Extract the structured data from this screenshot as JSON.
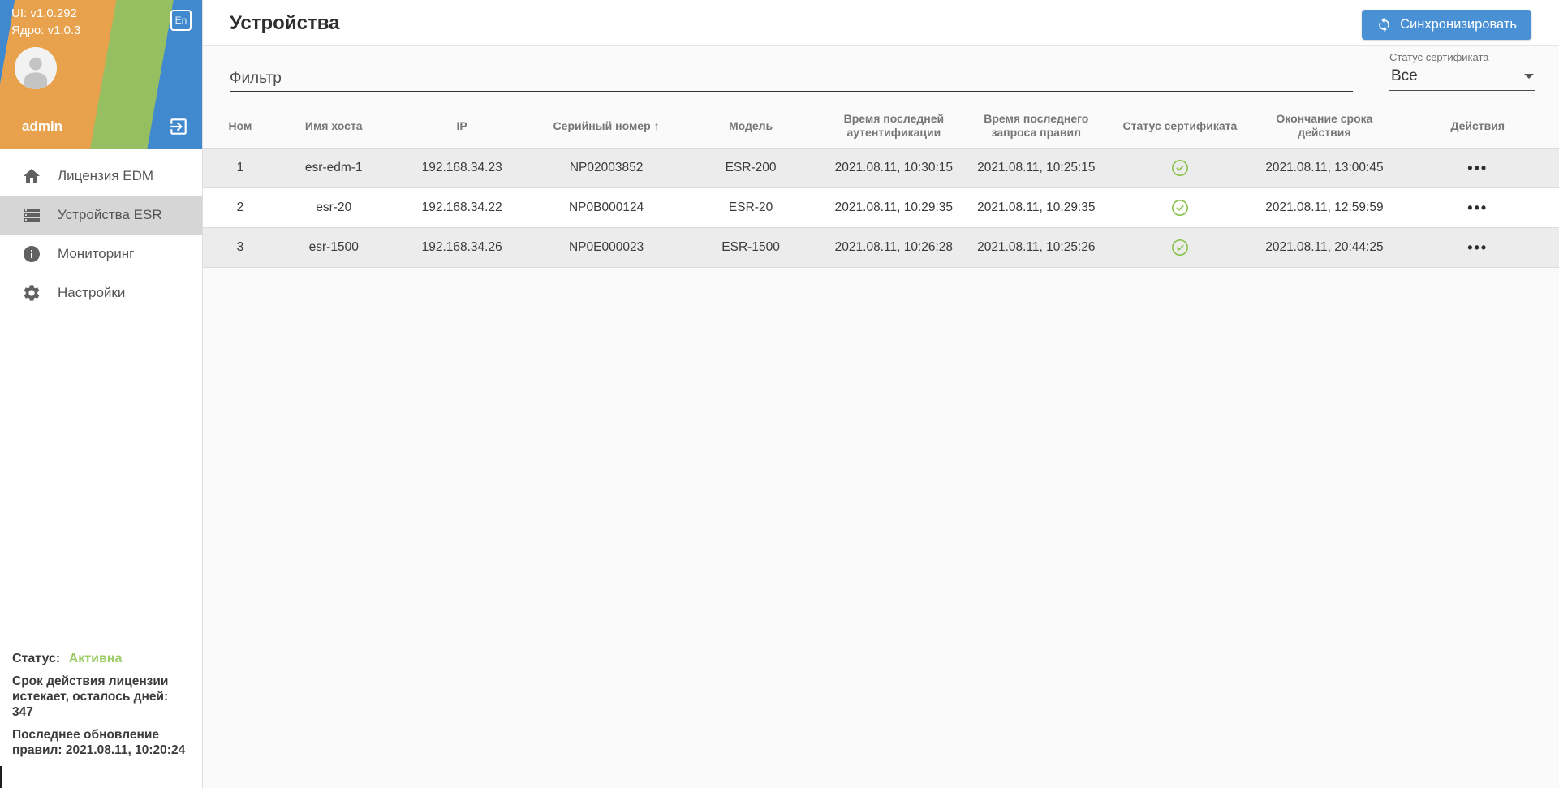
{
  "sidebar": {
    "ui_version": "UI: v1.0.292",
    "core_version": "Ядро: v1.0.3",
    "username": "admin",
    "lang_badge": "En",
    "menu": [
      {
        "label": "Лицензия EDM",
        "icon": "home-icon",
        "active": false
      },
      {
        "label": "Устройства ESR",
        "icon": "storage-icon",
        "active": true
      },
      {
        "label": "Мониторинг",
        "icon": "info-icon",
        "active": false
      },
      {
        "label": "Настройки",
        "icon": "gear-icon",
        "active": false
      }
    ],
    "license": {
      "status_label": "Статус:",
      "status_value": "Активна",
      "expiry_text": "Срок действия лицензии истекает, осталось дней: 347",
      "last_update_text": "Последнее обновление правил: 2021.08.11, 10:20:24"
    }
  },
  "header": {
    "title": "Устройства",
    "sync_button_label": "Синхронизировать"
  },
  "filter": {
    "placeholder": "Фильтр",
    "cert_filter_label": "Статус сертификата",
    "cert_filter_value": "Все"
  },
  "table": {
    "columns": [
      "Ном",
      "Имя хоста",
      "IP",
      "Серийный номер",
      "Модель",
      "Время последней аутентификации",
      "Время последнего запроса правил",
      "Статус сертификата",
      "Окончание срока действия",
      "Действия"
    ],
    "sort_arrow": "↑",
    "sorted_column": "Серийный номер",
    "actions_glyph": "•••",
    "rows": [
      {
        "num": "1",
        "host": "esr-edm-1",
        "ip": "192.168.34.23",
        "serial": "NP02003852",
        "model": "ESR-200",
        "auth_time": "2021.08.11, 10:30:15",
        "rules_time": "2021.08.11, 10:25:15",
        "cert_ok": true,
        "expiry": "2021.08.11, 13:00:45"
      },
      {
        "num": "2",
        "host": "esr-20",
        "ip": "192.168.34.22",
        "serial": "NP0B000124",
        "model": "ESR-20",
        "auth_time": "2021.08.11, 10:29:35",
        "rules_time": "2021.08.11, 10:29:35",
        "cert_ok": true,
        "expiry": "2021.08.11, 12:59:59"
      },
      {
        "num": "3",
        "host": "esr-1500",
        "ip": "192.168.34.26",
        "serial": "NP0E000023",
        "model": "ESR-1500",
        "auth_time": "2021.08.11, 10:26:28",
        "rules_time": "2021.08.11, 10:25:26",
        "cert_ok": true,
        "expiry": "2021.08.11, 20:44:25"
      }
    ]
  },
  "colors": {
    "accent_blue": "#4a90d5",
    "stripe_blue": "#4189ce",
    "stripe_orange": "#e8a14c",
    "stripe_green": "#95bf60",
    "status_green": "#9ccc65",
    "check_green": "#8bc34a",
    "selected_menu_bg": "#d6d6d6"
  }
}
